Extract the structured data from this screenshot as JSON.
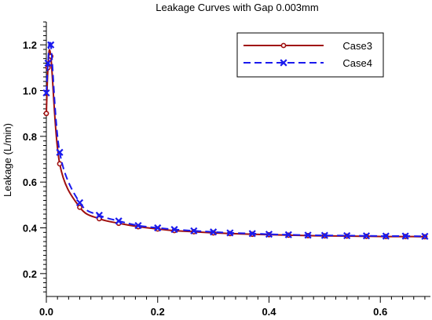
{
  "chart_data": {
    "type": "line",
    "title": "Leakage Curves with Gap 0.003mm",
    "xlabel": "",
    "ylabel": "Leakage (L/min)",
    "xlim": [
      0,
      0.69
    ],
    "ylim": [
      0.1,
      1.3
    ],
    "x_ticks": [
      "0.0",
      "0.2",
      "0.4",
      "0.6"
    ],
    "y_ticks": [
      "0.2",
      "0.4",
      "0.6",
      "0.8",
      "1.0",
      "1.2"
    ],
    "x_tick_values": [
      0,
      0.2,
      0.4,
      0.6
    ],
    "y_tick_values": [
      0.2,
      0.4,
      0.6,
      0.8,
      1.0,
      1.2
    ],
    "grid": false,
    "legend_position": "top-right",
    "series": [
      {
        "name": "Case3",
        "color": "#a01010",
        "line_style": "solid",
        "marker": "circle",
        "x": [
          0.0,
          0.003,
          0.008,
          0.024,
          0.06,
          0.095,
          0.13,
          0.165,
          0.2,
          0.23,
          0.265,
          0.3,
          0.33,
          0.37,
          0.4,
          0.435,
          0.47,
          0.5,
          0.54,
          0.575,
          0.61,
          0.645,
          0.68
        ],
        "y": [
          0.9,
          1.1,
          1.15,
          0.68,
          0.49,
          0.44,
          0.42,
          0.405,
          0.395,
          0.388,
          0.383,
          0.378,
          0.375,
          0.372,
          0.37,
          0.368,
          0.366,
          0.365,
          0.364,
          0.363,
          0.362,
          0.362,
          0.361
        ]
      },
      {
        "name": "Case4",
        "color": "#1a1aee",
        "line_style": "dashed",
        "marker": "x",
        "x": [
          0.0,
          0.003,
          0.008,
          0.024,
          0.06,
          0.095,
          0.13,
          0.165,
          0.2,
          0.23,
          0.265,
          0.3,
          0.33,
          0.37,
          0.4,
          0.435,
          0.47,
          0.5,
          0.54,
          0.575,
          0.61,
          0.645,
          0.68
        ],
        "y": [
          0.99,
          1.12,
          1.2,
          0.73,
          0.51,
          0.455,
          0.43,
          0.41,
          0.4,
          0.393,
          0.387,
          0.382,
          0.378,
          0.375,
          0.372,
          0.37,
          0.368,
          0.367,
          0.366,
          0.365,
          0.364,
          0.364,
          0.363
        ]
      }
    ]
  }
}
